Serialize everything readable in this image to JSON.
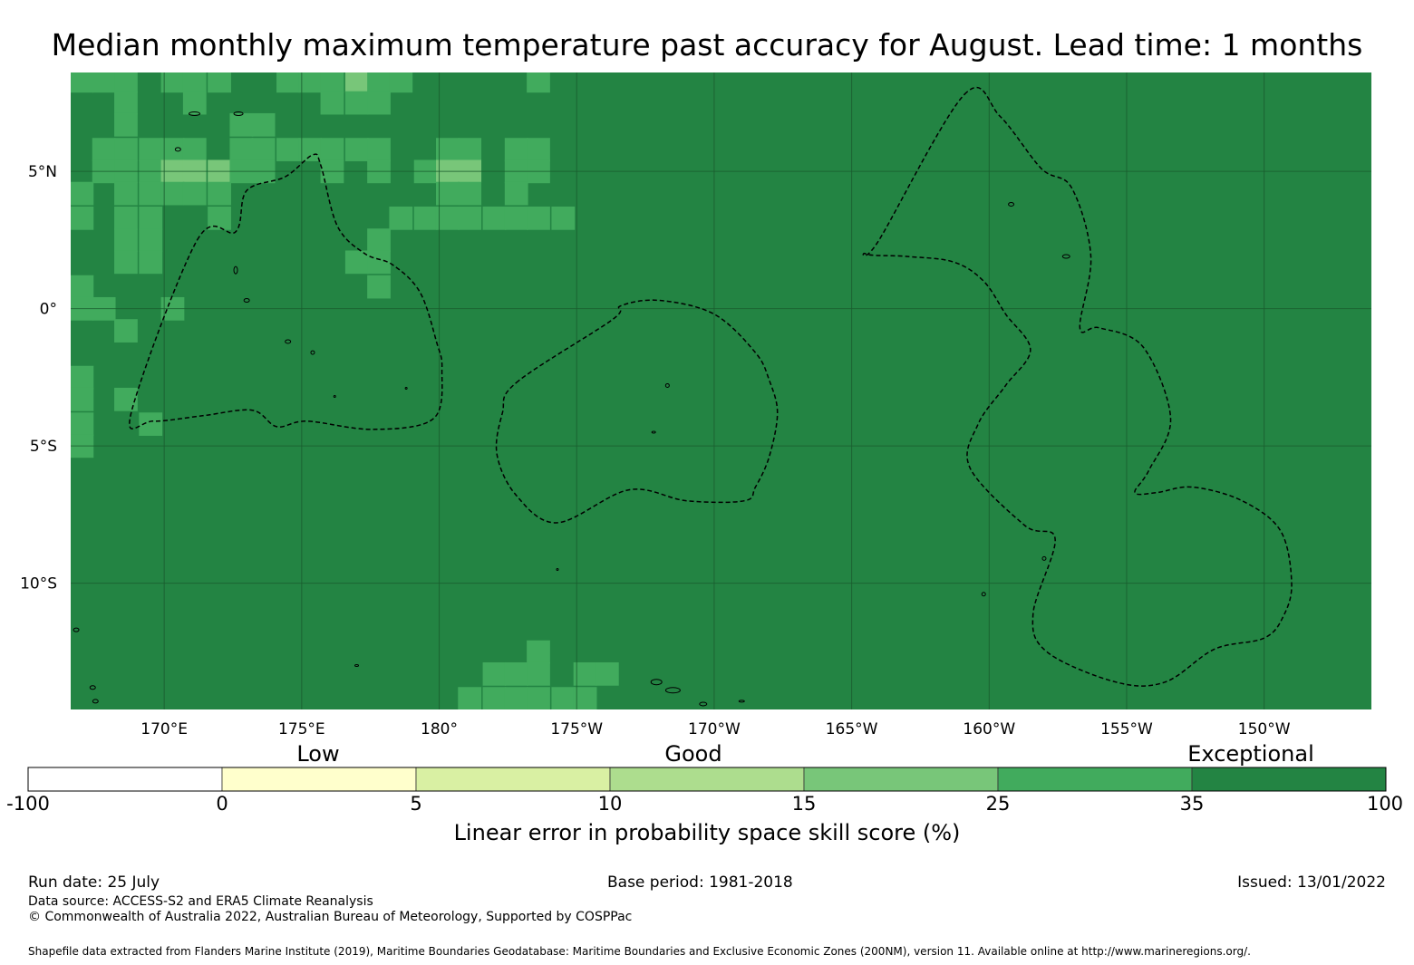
{
  "title": "Median monthly maximum temperature past accuracy for August. Lead time: 1 months",
  "map": {
    "background_color": "#238443",
    "lat_range": [
      -14.6,
      8.6
    ],
    "lon_range_east": [
      166.6,
      213.9
    ],
    "lat_ticks": [
      {
        "lat": 5,
        "label": "5°N"
      },
      {
        "lat": 0,
        "label": "0°"
      },
      {
        "lat": -5,
        "label": "5°S"
      },
      {
        "lat": -10,
        "label": "10°S"
      }
    ],
    "lon_ticks": [
      {
        "lon": 170,
        "label": "170°E"
      },
      {
        "lon": 175,
        "label": "175°E"
      },
      {
        "lon": 180,
        "label": "180°"
      },
      {
        "lon": 185,
        "label": "175°W"
      },
      {
        "lon": 190,
        "label": "170°W"
      },
      {
        "lon": 195,
        "label": "165°W"
      },
      {
        "lon": 200,
        "label": "160°W"
      },
      {
        "lon": 205,
        "label": "155°W"
      },
      {
        "lon": 210,
        "label": "150°W"
      }
    ],
    "cell_size_deg": 0.833,
    "lighter_cells": [
      {
        "lon": 167.0,
        "lat": 8.3,
        "level": 35
      },
      {
        "lon": 167.8,
        "lat": 8.3,
        "level": 35
      },
      {
        "lon": 168.6,
        "lat": 8.3,
        "level": 35
      },
      {
        "lon": 170.3,
        "lat": 8.3,
        "level": 35
      },
      {
        "lon": 171.1,
        "lat": 8.3,
        "level": 35
      },
      {
        "lon": 172.0,
        "lat": 8.3,
        "level": 35
      },
      {
        "lon": 174.5,
        "lat": 8.3,
        "level": 35
      },
      {
        "lon": 175.3,
        "lat": 8.3,
        "level": 35
      },
      {
        "lon": 176.1,
        "lat": 8.3,
        "level": 35
      },
      {
        "lon": 177.0,
        "lat": 8.3,
        "level": 25
      },
      {
        "lon": 177.8,
        "lat": 8.3,
        "level": 35
      },
      {
        "lon": 178.6,
        "lat": 8.3,
        "level": 35
      },
      {
        "lon": 183.6,
        "lat": 8.3,
        "level": 35
      },
      {
        "lon": 168.6,
        "lat": 7.5,
        "level": 35
      },
      {
        "lon": 171.1,
        "lat": 7.5,
        "level": 35
      },
      {
        "lon": 176.1,
        "lat": 7.5,
        "level": 35
      },
      {
        "lon": 177.0,
        "lat": 7.5,
        "level": 35
      },
      {
        "lon": 177.8,
        "lat": 7.5,
        "level": 35
      },
      {
        "lon": 168.6,
        "lat": 6.7,
        "level": 35
      },
      {
        "lon": 172.8,
        "lat": 6.7,
        "level": 35
      },
      {
        "lon": 173.6,
        "lat": 6.7,
        "level": 35
      },
      {
        "lon": 167.8,
        "lat": 5.8,
        "level": 35
      },
      {
        "lon": 168.6,
        "lat": 5.8,
        "level": 35
      },
      {
        "lon": 169.5,
        "lat": 5.8,
        "level": 35
      },
      {
        "lon": 170.3,
        "lat": 5.8,
        "level": 35
      },
      {
        "lon": 171.1,
        "lat": 5.8,
        "level": 35
      },
      {
        "lon": 172.8,
        "lat": 5.8,
        "level": 35
      },
      {
        "lon": 173.6,
        "lat": 5.8,
        "level": 35
      },
      {
        "lon": 174.5,
        "lat": 5.8,
        "level": 35
      },
      {
        "lon": 175.3,
        "lat": 5.8,
        "level": 35
      },
      {
        "lon": 176.1,
        "lat": 5.8,
        "level": 35
      },
      {
        "lon": 177.0,
        "lat": 5.8,
        "level": 35
      },
      {
        "lon": 177.8,
        "lat": 5.8,
        "level": 35
      },
      {
        "lon": 180.3,
        "lat": 5.8,
        "level": 35
      },
      {
        "lon": 181.1,
        "lat": 5.8,
        "level": 35
      },
      {
        "lon": 182.8,
        "lat": 5.8,
        "level": 35
      },
      {
        "lon": 183.6,
        "lat": 5.8,
        "level": 35
      },
      {
        "lon": 167.8,
        "lat": 5.0,
        "level": 35
      },
      {
        "lon": 168.6,
        "lat": 5.0,
        "level": 35
      },
      {
        "lon": 169.5,
        "lat": 5.0,
        "level": 35
      },
      {
        "lon": 170.3,
        "lat": 5.0,
        "level": 25
      },
      {
        "lon": 171.1,
        "lat": 5.0,
        "level": 25
      },
      {
        "lon": 172.0,
        "lat": 5.0,
        "level": 25
      },
      {
        "lon": 172.8,
        "lat": 5.0,
        "level": 35
      },
      {
        "lon": 173.6,
        "lat": 5.0,
        "level": 35
      },
      {
        "lon": 176.1,
        "lat": 5.0,
        "level": 35
      },
      {
        "lon": 177.8,
        "lat": 5.0,
        "level": 35
      },
      {
        "lon": 179.5,
        "lat": 5.0,
        "level": 35
      },
      {
        "lon": 180.3,
        "lat": 5.0,
        "level": 25
      },
      {
        "lon": 181.1,
        "lat": 5.0,
        "level": 25
      },
      {
        "lon": 182.8,
        "lat": 5.0,
        "level": 35
      },
      {
        "lon": 183.6,
        "lat": 5.0,
        "level": 35
      },
      {
        "lon": 167.0,
        "lat": 4.2,
        "level": 35
      },
      {
        "lon": 168.6,
        "lat": 4.2,
        "level": 35
      },
      {
        "lon": 169.5,
        "lat": 4.2,
        "level": 35
      },
      {
        "lon": 170.3,
        "lat": 4.2,
        "level": 35
      },
      {
        "lon": 171.1,
        "lat": 4.2,
        "level": 35
      },
      {
        "lon": 172.0,
        "lat": 4.2,
        "level": 35
      },
      {
        "lon": 180.3,
        "lat": 4.2,
        "level": 35
      },
      {
        "lon": 181.1,
        "lat": 4.2,
        "level": 35
      },
      {
        "lon": 182.8,
        "lat": 4.2,
        "level": 35
      },
      {
        "lon": 167.0,
        "lat": 3.3,
        "level": 35
      },
      {
        "lon": 168.6,
        "lat": 3.3,
        "level": 35
      },
      {
        "lon": 169.5,
        "lat": 3.3,
        "level": 35
      },
      {
        "lon": 172.0,
        "lat": 3.3,
        "level": 35
      },
      {
        "lon": 178.6,
        "lat": 3.3,
        "level": 35
      },
      {
        "lon": 179.5,
        "lat": 3.3,
        "level": 35
      },
      {
        "lon": 180.3,
        "lat": 3.3,
        "level": 35
      },
      {
        "lon": 181.1,
        "lat": 3.3,
        "level": 35
      },
      {
        "lon": 182.0,
        "lat": 3.3,
        "level": 35
      },
      {
        "lon": 182.8,
        "lat": 3.3,
        "level": 35
      },
      {
        "lon": 183.6,
        "lat": 3.3,
        "level": 35
      },
      {
        "lon": 184.5,
        "lat": 3.3,
        "level": 35
      },
      {
        "lon": 168.6,
        "lat": 2.5,
        "level": 35
      },
      {
        "lon": 169.5,
        "lat": 2.5,
        "level": 35
      },
      {
        "lon": 177.8,
        "lat": 2.5,
        "level": 35
      },
      {
        "lon": 168.6,
        "lat": 1.7,
        "level": 35
      },
      {
        "lon": 169.5,
        "lat": 1.7,
        "level": 35
      },
      {
        "lon": 177.0,
        "lat": 1.7,
        "level": 35
      },
      {
        "lon": 177.8,
        "lat": 1.7,
        "level": 35
      },
      {
        "lon": 167.0,
        "lat": 0.8,
        "level": 35
      },
      {
        "lon": 177.8,
        "lat": 0.8,
        "level": 35
      },
      {
        "lon": 167.0,
        "lat": 0.0,
        "level": 35
      },
      {
        "lon": 167.8,
        "lat": 0.0,
        "level": 35
      },
      {
        "lon": 170.3,
        "lat": 0.0,
        "level": 35
      },
      {
        "lon": 168.6,
        "lat": -0.8,
        "level": 35
      },
      {
        "lon": 167.0,
        "lat": -2.5,
        "level": 35
      },
      {
        "lon": 167.0,
        "lat": -3.3,
        "level": 35
      },
      {
        "lon": 168.6,
        "lat": -3.3,
        "level": 35
      },
      {
        "lon": 167.0,
        "lat": -4.2,
        "level": 35
      },
      {
        "lon": 169.5,
        "lat": -4.2,
        "level": 35
      },
      {
        "lon": 167.0,
        "lat": -5.0,
        "level": 35
      },
      {
        "lon": 183.6,
        "lat": -12.5,
        "level": 35
      },
      {
        "lon": 182.0,
        "lat": -13.3,
        "level": 35
      },
      {
        "lon": 182.8,
        "lat": -13.3,
        "level": 35
      },
      {
        "lon": 183.6,
        "lat": -13.3,
        "level": 35
      },
      {
        "lon": 185.3,
        "lat": -13.3,
        "level": 35
      },
      {
        "lon": 186.1,
        "lat": -13.3,
        "level": 35
      },
      {
        "lon": 181.1,
        "lat": -14.2,
        "level": 35
      },
      {
        "lon": 182.0,
        "lat": -14.2,
        "level": 35
      },
      {
        "lon": 182.8,
        "lat": -14.2,
        "level": 35
      },
      {
        "lon": 183.6,
        "lat": -14.2,
        "level": 35
      },
      {
        "lon": 184.5,
        "lat": -14.2,
        "level": 35
      },
      {
        "lon": 185.3,
        "lat": -14.2,
        "level": 35
      }
    ],
    "eez_regions": [
      {
        "name": "",
        "points": [
          [
            171.2,
            2.5
          ],
          [
            172.6,
            2.8
          ],
          [
            173.0,
            4.3
          ],
          [
            174.4,
            4.8
          ],
          [
            175.4,
            5.6
          ],
          [
            175.7,
            5.2
          ],
          [
            176.3,
            3.0
          ],
          [
            177.3,
            2.0
          ],
          [
            178.3,
            1.6
          ],
          [
            179.3,
            0.6
          ],
          [
            179.9,
            -1.2
          ],
          [
            180.1,
            -2.2
          ],
          [
            179.8,
            -4.0
          ],
          [
            177.6,
            -4.4
          ],
          [
            175.2,
            -4.1
          ],
          [
            174.1,
            -4.3
          ],
          [
            173.2,
            -3.7
          ],
          [
            171.4,
            -3.9
          ],
          [
            169.6,
            -4.1
          ],
          [
            168.8,
            -3.8
          ]
        ]
      },
      {
        "name": "",
        "points": [
          [
            182.8,
            -2.7
          ],
          [
            186.3,
            -0.4
          ],
          [
            186.6,
            0.1
          ],
          [
            188.0,
            0.3
          ],
          [
            190.0,
            -0.2
          ],
          [
            191.5,
            -1.6
          ],
          [
            192.0,
            -2.6
          ],
          [
            192.3,
            -3.8
          ],
          [
            192.0,
            -5.4
          ],
          [
            191.5,
            -6.5
          ],
          [
            191.1,
            -7.0
          ],
          [
            189.0,
            -7.0
          ],
          [
            186.9,
            -6.6
          ],
          [
            184.3,
            -7.8
          ],
          [
            182.8,
            -6.8
          ],
          [
            182.1,
            -5.3
          ],
          [
            182.3,
            -3.8
          ]
        ]
      },
      {
        "name": "",
        "points": [
          [
            199.1,
            7.8
          ],
          [
            200.4,
            7.0
          ],
          [
            201.9,
            5.1
          ],
          [
            203.0,
            4.4
          ],
          [
            203.7,
            1.9
          ],
          [
            203.3,
            -0.7
          ],
          [
            204.0,
            -0.7
          ],
          [
            205.6,
            -1.4
          ],
          [
            206.6,
            -4.0
          ],
          [
            205.8,
            -5.9
          ],
          [
            205.3,
            -6.7
          ],
          [
            206.1,
            -6.7
          ],
          [
            207.4,
            -6.5
          ],
          [
            209.2,
            -7.0
          ],
          [
            210.6,
            -8.1
          ],
          [
            211.0,
            -10.0
          ],
          [
            210.7,
            -11.2
          ],
          [
            210.0,
            -12.0
          ],
          [
            208.2,
            -12.4
          ],
          [
            206.4,
            -13.6
          ],
          [
            204.6,
            -13.6
          ],
          [
            202.1,
            -12.5
          ],
          [
            201.6,
            -11.1
          ],
          [
            202.4,
            -8.4
          ],
          [
            201.3,
            -7.9
          ],
          [
            199.3,
            -5.8
          ],
          [
            199.6,
            -4.2
          ],
          [
            200.6,
            -2.8
          ],
          [
            201.5,
            -1.5
          ],
          [
            200.6,
            -0.2
          ],
          [
            199.8,
            1.0
          ],
          [
            198.7,
            1.7
          ],
          [
            197.0,
            1.9
          ],
          [
            195.5,
            2.0
          ],
          [
            196.0,
            2.5
          ]
        ]
      }
    ],
    "islands": [
      {
        "lon": 187.9,
        "lat": -13.6,
        "rx": 6,
        "ry": 3
      },
      {
        "lon": 188.5,
        "lat": -13.9,
        "rx": 8,
        "ry": 3
      },
      {
        "lon": 171.1,
        "lat": 7.1,
        "rx": 6,
        "ry": 2
      },
      {
        "lon": 172.7,
        "lat": 7.1,
        "rx": 5,
        "ry": 2
      },
      {
        "lon": 170.5,
        "lat": 5.8,
        "rx": 3,
        "ry": 2
      },
      {
        "lon": 172.6,
        "lat": 1.4,
        "rx": 2,
        "ry": 4
      },
      {
        "lon": 173.0,
        "lat": 0.3,
        "rx": 3,
        "ry": 2
      },
      {
        "lon": 174.5,
        "lat": -1.2,
        "rx": 3,
        "ry": 2
      },
      {
        "lon": 175.4,
        "lat": -1.6,
        "rx": 2,
        "ry": 2
      },
      {
        "lon": 200.8,
        "lat": 3.8,
        "rx": 3,
        "ry": 2
      },
      {
        "lon": 202.8,
        "lat": 1.9,
        "rx": 4,
        "ry": 2
      },
      {
        "lon": 188.3,
        "lat": -2.8,
        "rx": 2,
        "ry": 2
      },
      {
        "lon": 187.8,
        "lat": -4.5,
        "rx": 2,
        "ry": 1
      },
      {
        "lon": 202.0,
        "lat": -9.1,
        "rx": 2,
        "ry": 2
      },
      {
        "lon": 199.8,
        "lat": -10.4,
        "rx": 2,
        "ry": 2
      },
      {
        "lon": 166.8,
        "lat": -11.7,
        "rx": 3,
        "ry": 2
      },
      {
        "lon": 167.4,
        "lat": -13.8,
        "rx": 3,
        "ry": 2
      },
      {
        "lon": 167.5,
        "lat": -14.3,
        "rx": 3,
        "ry": 2
      },
      {
        "lon": 189.6,
        "lat": -14.4,
        "rx": 4,
        "ry": 2
      },
      {
        "lon": 191.0,
        "lat": -14.3,
        "rx": 3,
        "ry": 1
      },
      {
        "lon": 178.8,
        "lat": -2.9,
        "rx": 1,
        "ry": 1
      },
      {
        "lon": 176.2,
        "lat": -3.2,
        "rx": 1,
        "ry": 1
      },
      {
        "lon": 177.0,
        "lat": -13.0,
        "rx": 2,
        "ry": 1
      },
      {
        "lon": 184.3,
        "lat": -9.5,
        "rx": 1,
        "ry": 1
      }
    ]
  },
  "categories": [
    {
      "label": "Low"
    },
    {
      "label": "Good"
    },
    {
      "label": "Exceptional"
    }
  ],
  "colorbar": {
    "colors": [
      "#ffffff",
      "#ffffcc",
      "#d9f0a3",
      "#addd8e",
      "#78c679",
      "#41ab5d",
      "#238443"
    ],
    "ticks": [
      "-100",
      "0",
      "5",
      "10",
      "15",
      "25",
      "35",
      "100"
    ],
    "level_colors": {
      "25": "#78c679",
      "35": "#41ab5d"
    },
    "label": "Linear error in probability space skill score (%)"
  },
  "footer": {
    "run_date": "Run date: 25 July",
    "base_period": "Base period: 1981-2018",
    "issued": "Issued: 13/01/2022",
    "data_source": "Data source: ACCESS-S2 and ERA5 Climate Reanalysis",
    "copyright": "© Commonwealth of Australia 2022, Australian Bureau of Meteorology, Supported by COSPPac",
    "shapefile": "Shapefile data extracted from Flanders Marine Institute (2019), Maritime Boundaries Geodatabase: Maritime Boundaries and Exclusive Economic Zones (200NM), version 11. Available online at http://www.marineregions.org/."
  }
}
